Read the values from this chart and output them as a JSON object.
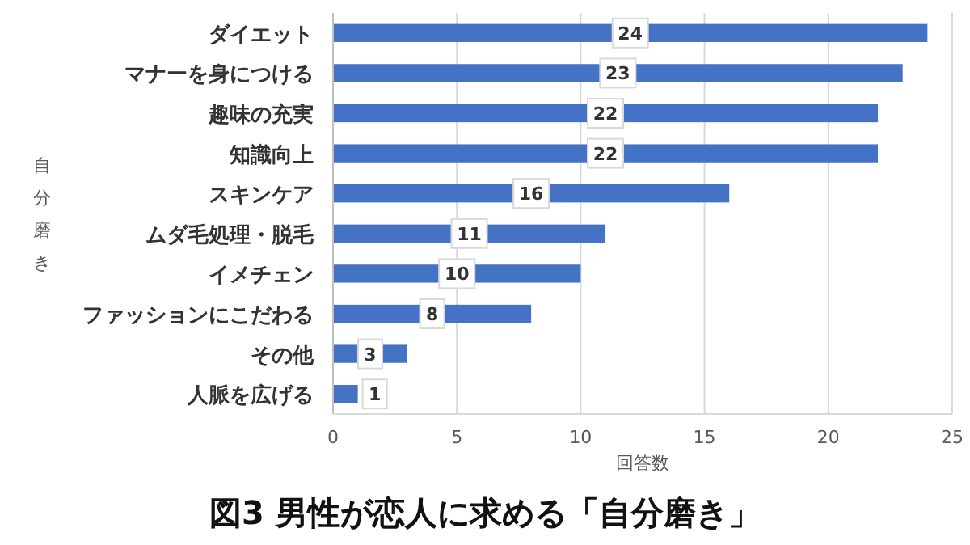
{
  "chart_data": {
    "type": "bar",
    "orientation": "horizontal",
    "title": "図3 男性が恋人に求める「自分磨き」",
    "xlabel": "回答数",
    "ylabel": "自分磨き",
    "categories": [
      "ダイエット",
      "マナーを身につける",
      "趣味の充実",
      "知識向上",
      "スキンケア",
      "ムダ毛処理・脱毛",
      "イメチェン",
      "ファッションにこだわる",
      "その他",
      "人脈を広げる"
    ],
    "values": [
      24,
      23,
      22,
      22,
      16,
      11,
      10,
      8,
      3,
      1
    ],
    "color": "#4472c4",
    "xlim": [
      0,
      25
    ],
    "xticks": [
      0,
      5,
      10,
      15,
      20,
      25
    ],
    "grid": "x",
    "data_labels": true
  }
}
